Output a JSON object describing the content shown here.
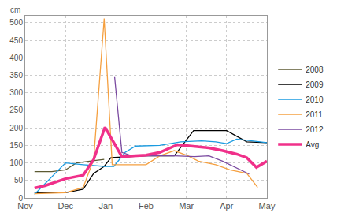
{
  "chart_data": {
    "type": "line",
    "y_label": "cm",
    "xlim": [
      0,
      6
    ],
    "xticks": [
      {
        "value": 0,
        "label": "Nov"
      },
      {
        "value": 1,
        "label": "Dec"
      },
      {
        "value": 2,
        "label": "Jan"
      },
      {
        "value": 3,
        "label": "Feb"
      },
      {
        "value": 4,
        "label": "Mar"
      },
      {
        "value": 5,
        "label": "Apr"
      },
      {
        "value": 6,
        "label": "May"
      }
    ],
    "ylim": [
      0,
      520
    ],
    "yticks": [
      0,
      50,
      100,
      150,
      200,
      250,
      300,
      350,
      400,
      450,
      500
    ],
    "grid": true,
    "legend": "right",
    "series": [
      {
        "name": "2008",
        "color": "#5c5a32",
        "x": [
          0.23,
          0.66,
          1.0,
          1.27,
          1.6,
          1.96
        ],
        "values": [
          75,
          75,
          80,
          100,
          105,
          110
        ]
      },
      {
        "name": "2009",
        "color": "#000000",
        "x": [
          0.23,
          1.0,
          1.44,
          1.7,
          1.96,
          2.13,
          3.0,
          3.7,
          4.18,
          5.0,
          5.5,
          6.0
        ],
        "values": [
          15,
          15,
          25,
          70,
          90,
          115,
          120,
          120,
          192,
          192,
          160,
          158
        ]
      },
      {
        "name": "2010",
        "color": "#1a9be0",
        "x": [
          0.23,
          0.66,
          1.0,
          1.44,
          1.96,
          2.2,
          2.48,
          2.74,
          3.34,
          3.86,
          4.38,
          4.73,
          5.0,
          5.25,
          6.0
        ],
        "values": [
          10,
          60,
          100,
          95,
          90,
          90,
          130,
          148,
          150,
          160,
          163,
          160,
          155,
          168,
          158
        ]
      },
      {
        "name": "2011",
        "color": "#f5a040",
        "x": [
          0.23,
          1.0,
          1.44,
          1.7,
          1.96,
          2.16,
          2.48,
          3.0,
          3.34,
          3.7,
          4.04,
          4.3,
          4.73,
          5.08,
          5.5,
          5.77
        ],
        "values": [
          12,
          15,
          30,
          110,
          512,
          95,
          95,
          95,
          120,
          135,
          120,
          105,
          95,
          80,
          70,
          30
        ]
      },
      {
        "name": "2012",
        "color": "#7a4aa0",
        "x": [
          2.22,
          2.4,
          2.65,
          3.0,
          3.7,
          4.2,
          4.56,
          4.9,
          5.25,
          5.56
        ],
        "values": [
          345,
          130,
          120,
          120,
          120,
          118,
          120,
          105,
          85,
          68
        ]
      },
      {
        "name": "Avg",
        "color": "#f0308a",
        "line_style": "thick",
        "x": [
          0.23,
          0.49,
          1.0,
          1.44,
          1.7,
          1.98,
          2.4,
          3.0,
          3.34,
          3.78,
          4.12,
          4.56,
          4.9,
          5.25,
          5.5,
          5.74,
          6.0
        ],
        "values": [
          28,
          35,
          55,
          65,
          110,
          202,
          118,
          122,
          130,
          152,
          148,
          143,
          135,
          125,
          115,
          87,
          105
        ]
      }
    ]
  }
}
